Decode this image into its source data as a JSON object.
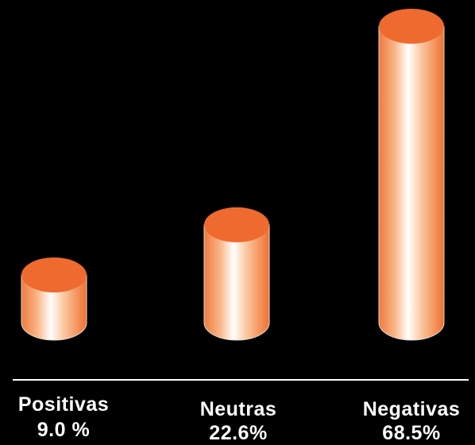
{
  "chart_data": {
    "type": "bar",
    "style": "3d-cylinder",
    "categories": [
      "Positivas",
      "Neutras",
      "Negativas"
    ],
    "values": [
      9.0,
      22.6,
      68.5
    ],
    "value_labels": [
      "9.0 %",
      "22.6%",
      "68.5%"
    ],
    "bar_color": "#F07030",
    "bar_top_color": "#EE6A2E",
    "background": "#000000",
    "baseline_color": "#FFFFFF",
    "ylim": [
      0,
      68.5
    ]
  }
}
